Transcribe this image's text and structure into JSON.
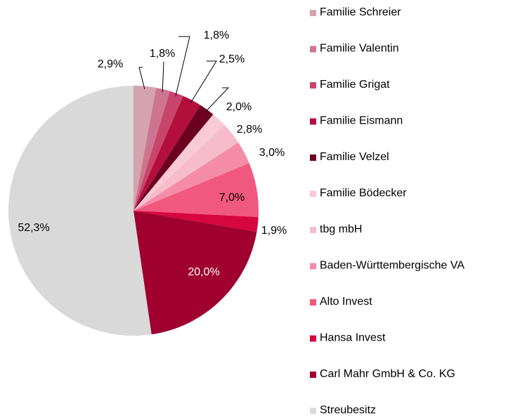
{
  "chart_data": {
    "type": "pie",
    "categories": [
      "Familie Schreier",
      "Familie Valentin",
      "Familie Grigat",
      "Familie Eismann",
      "Familie Velzel",
      "Familie Bödecker",
      "tbg mbH",
      "Baden-Württembergische VA",
      "Alto Invest",
      "Hansa Invest",
      "Carl Mahr GmbH & Co. KG",
      "Streubesitz"
    ],
    "values": [
      2.9,
      1.8,
      1.8,
      2.5,
      2.0,
      2.0,
      2.8,
      3.0,
      7.0,
      1.9,
      20.0,
      52.3
    ],
    "value_labels": [
      "2,9%",
      "1,8%",
      "1,8%",
      "2,5%",
      null,
      "2,0%",
      "2,8%",
      "3,0%",
      "7,0%",
      "1,9%",
      "20,0%",
      "52,3%"
    ],
    "colors": [
      "#d4a3ae",
      "#cd7590",
      "#c9456b",
      "#b30f3d",
      "#6b0020",
      "#f9c9d5",
      "#f7bccb",
      "#f48ca8",
      "#f1587f",
      "#d7063f",
      "#a0002f",
      "#d9d9d9"
    ],
    "legend": "right"
  }
}
